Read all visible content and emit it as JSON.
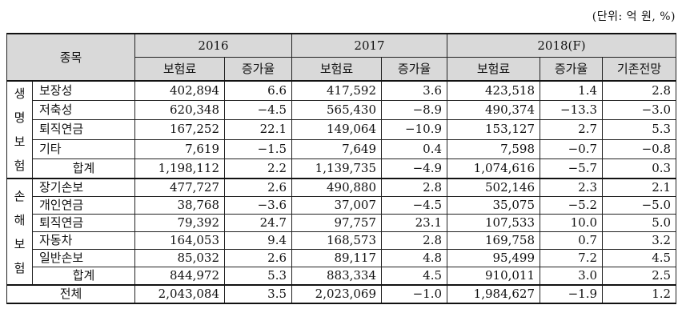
{
  "unit_note": "(단위: 억 원, %)",
  "header": {
    "category": "종목",
    "years": [
      "2016",
      "2017",
      "2018(F)"
    ],
    "premium": "보험료",
    "growth": "증가율",
    "prev_forecast": "기존전망"
  },
  "life": {
    "group_label": "생명보험",
    "rows": [
      {
        "name": "보장성",
        "p2016": "402,894",
        "g2016": "6.6",
        "p2017": "417,592",
        "g2017": "3.6",
        "p2018": "423,518",
        "g2018": "1.4",
        "prev": "2.8"
      },
      {
        "name": "저축성",
        "p2016": "620,348",
        "g2016": "−4.5",
        "p2017": "565,430",
        "g2017": "−8.9",
        "p2018": "490,374",
        "g2018": "−13.3",
        "prev": "−3.0"
      },
      {
        "name": "퇴직연금",
        "p2016": "167,252",
        "g2016": "22.1",
        "p2017": "149,064",
        "g2017": "−10.9",
        "p2018": "153,127",
        "g2018": "2.7",
        "prev": "5.3"
      },
      {
        "name": "기타",
        "p2016": "7,619",
        "g2016": "−1.5",
        "p2017": "7,649",
        "g2017": "0.4",
        "p2018": "7,598",
        "g2018": "−0.7",
        "prev": "−0.8"
      }
    ],
    "total": {
      "name": "합계",
      "p2016": "1,198,112",
      "g2016": "2.2",
      "p2017": "1,139,735",
      "g2017": "−4.9",
      "p2018": "1,074,616",
      "g2018": "−5.7",
      "prev": "0.3"
    }
  },
  "nonlife": {
    "group_label": "손해보험",
    "rows": [
      {
        "name": "장기손보",
        "p2016": "477,727",
        "g2016": "2.6",
        "p2017": "490,880",
        "g2017": "2.8",
        "p2018": "502,146",
        "g2018": "2.3",
        "prev": "2.1"
      },
      {
        "name": "개인연금",
        "p2016": "38,768",
        "g2016": "−3.6",
        "p2017": "37,007",
        "g2017": "−4.5",
        "p2018": "35,075",
        "g2018": "−5.2",
        "prev": "−5.0"
      },
      {
        "name": "퇴직연금",
        "p2016": "79,392",
        "g2016": "24.7",
        "p2017": "97,757",
        "g2017": "23.1",
        "p2018": "107,533",
        "g2018": "10.0",
        "prev": "5.0"
      },
      {
        "name": "자동차",
        "p2016": "164,053",
        "g2016": "9.4",
        "p2017": "168,573",
        "g2017": "2.8",
        "p2018": "169,758",
        "g2018": "0.7",
        "prev": "3.2"
      },
      {
        "name": "일반손보",
        "p2016": "85,032",
        "g2016": "2.6",
        "p2017": "89,117",
        "g2017": "4.8",
        "p2018": "95,499",
        "g2018": "7.2",
        "prev": "4.5"
      }
    ],
    "total": {
      "name": "합계",
      "p2016": "844,972",
      "g2016": "5.3",
      "p2017": "883,334",
      "g2017": "4.5",
      "p2018": "910,011",
      "g2018": "3.0",
      "prev": "2.5"
    }
  },
  "grand_total": {
    "name": "전체",
    "p2016": "2,043,084",
    "g2016": "3.5",
    "p2017": "2,023,069",
    "g2017": "−1.0",
    "p2018": "1,984,627",
    "g2018": "−1.9",
    "prev": "1.2"
  }
}
